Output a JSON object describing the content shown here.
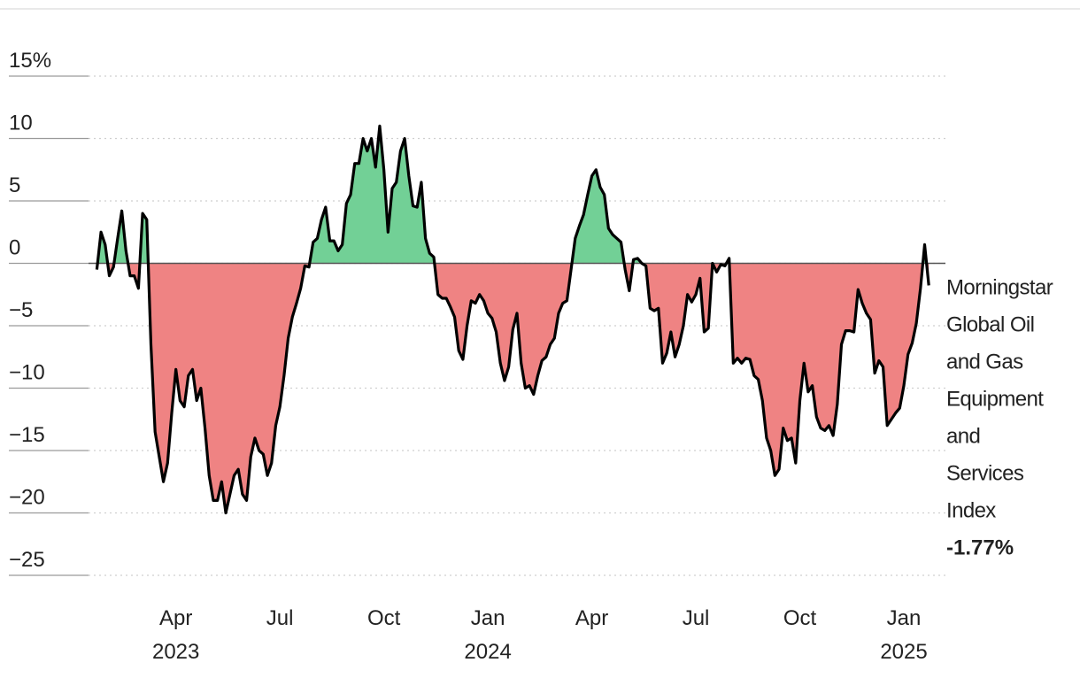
{
  "chart_data": {
    "type": "area",
    "xlim": [
      2023.04,
      2025.1
    ],
    "xticks": [
      {
        "value": 2023.25,
        "label": "Apr 2023"
      },
      {
        "value": 2023.5,
        "label": "Jul"
      },
      {
        "value": 2023.75,
        "label": "Oct"
      },
      {
        "value": 2024.0,
        "label": "Jan 2024"
      },
      {
        "value": 2024.25,
        "label": "Apr"
      },
      {
        "value": 2024.5,
        "label": "Jul"
      },
      {
        "value": 2024.75,
        "label": "Oct"
      },
      {
        "value": 2025.0,
        "label": "Jan 2025"
      }
    ],
    "ylim": [
      -25,
      15
    ],
    "yticks": [
      {
        "value": 15,
        "label": "15%"
      },
      10,
      5,
      0,
      {
        "value": -5,
        "label": "−5"
      },
      {
        "value": -10,
        "label": "−10"
      },
      {
        "value": -15,
        "label": "−15"
      },
      {
        "value": -20,
        "label": "−20"
      },
      {
        "value": -25,
        "label": "−25"
      }
    ],
    "grid": true,
    "positive_color": "#72d096",
    "negative_color": "#ef8383",
    "x": [
      2023.06,
      2023.07,
      2023.08,
      2023.09,
      2023.1,
      2023.11,
      2023.12,
      2023.13,
      2023.14,
      2023.15,
      2023.16,
      2023.17,
      2023.18,
      2023.19,
      2023.2,
      2023.21,
      2023.22,
      2023.23,
      2023.24,
      2023.25,
      2023.26,
      2023.27,
      2023.28,
      2023.29,
      2023.3,
      2023.31,
      2023.32,
      2023.33,
      2023.34,
      2023.35,
      2023.36,
      2023.37,
      2023.38,
      2023.39,
      2023.4,
      2023.41,
      2023.42,
      2023.43,
      2023.44,
      2023.45,
      2023.46,
      2023.47,
      2023.48,
      2023.49,
      2023.5,
      2023.51,
      2023.52,
      2023.53,
      2023.54,
      2023.55,
      2023.56,
      2023.57,
      2023.58,
      2023.59,
      2023.6,
      2023.61,
      2023.62,
      2023.63,
      2023.64,
      2023.65,
      2023.66,
      2023.67,
      2023.68,
      2023.69,
      2023.7,
      2023.71,
      2023.72,
      2023.73,
      2023.74,
      2023.75,
      2023.76,
      2023.77,
      2023.78,
      2023.79,
      2023.8,
      2023.81,
      2023.82,
      2023.83,
      2023.84,
      2023.85,
      2023.86,
      2023.87,
      2023.88,
      2023.89,
      2023.9,
      2023.91,
      2023.92,
      2023.93,
      2023.94,
      2023.95,
      2023.96,
      2023.97,
      2023.98,
      2023.99,
      2024.0,
      2024.01,
      2024.02,
      2024.03,
      2024.04,
      2024.05,
      2024.06,
      2024.07,
      2024.08,
      2024.09,
      2024.1,
      2024.11,
      2024.12,
      2024.13,
      2024.14,
      2024.15,
      2024.16,
      2024.17,
      2024.18,
      2024.19,
      2024.2,
      2024.21,
      2024.22,
      2024.23,
      2024.24,
      2024.25,
      2024.26,
      2024.27,
      2024.28,
      2024.29,
      2024.3,
      2024.31,
      2024.32,
      2024.33,
      2024.34,
      2024.35,
      2024.36,
      2024.37,
      2024.38,
      2024.39,
      2024.4,
      2024.41,
      2024.42,
      2024.43,
      2024.44,
      2024.45,
      2024.46,
      2024.47,
      2024.48,
      2024.49,
      2024.5,
      2024.51,
      2024.52,
      2024.53,
      2024.54,
      2024.55,
      2024.56,
      2024.57,
      2024.58,
      2024.59,
      2024.6,
      2024.61,
      2024.62,
      2024.63,
      2024.64,
      2024.65,
      2024.66,
      2024.67,
      2024.68,
      2024.69,
      2024.7,
      2024.71,
      2024.72,
      2024.73,
      2024.74,
      2024.75,
      2024.76,
      2024.77,
      2024.78,
      2024.79,
      2024.8,
      2024.81,
      2024.82,
      2024.83,
      2024.84,
      2024.85,
      2024.86,
      2024.87,
      2024.88,
      2024.89,
      2024.9,
      2024.91,
      2024.92,
      2024.93,
      2024.94,
      2024.95,
      2024.96,
      2024.97,
      2024.98,
      2024.99,
      2025.0,
      2025.01,
      2025.02,
      2025.03,
      2025.04,
      2025.05,
      2025.06
    ],
    "series": [
      {
        "name": "Morningstar Global Oil and Gas Equipment and Services Index",
        "color": "#000000",
        "end_label": "-1.77%",
        "values": [
          -0.5,
          2.5,
          1.5,
          -1,
          -0.3,
          2,
          4.2,
          1,
          -1,
          -1,
          -2,
          4,
          3.5,
          -6.5,
          -13.5,
          -15.5,
          -17.5,
          -16,
          -12,
          -8.5,
          -11,
          -11.5,
          -9,
          -8.5,
          -11,
          -10,
          -13.2,
          -17,
          -19,
          -19,
          -17.5,
          -20,
          -18.5,
          -17,
          -16.5,
          -18.5,
          -19,
          -15.5,
          -14,
          -15,
          -15.3,
          -17,
          -16,
          -13,
          -11.5,
          -9,
          -6,
          -4.3,
          -3.2,
          -2,
          -0.2,
          -0.3,
          1.7,
          2,
          3.5,
          4.5,
          1.8,
          1.8,
          1,
          1.5,
          4.8,
          5.5,
          8,
          8,
          10,
          9,
          10,
          7.7,
          11,
          7.5,
          2.5,
          6,
          6.5,
          9,
          10,
          7,
          4.6,
          4.5,
          6.5,
          2,
          0.8,
          0.5,
          -2.5,
          -2.8,
          -2.8,
          -3.5,
          -4.3,
          -7,
          -7.7,
          -5,
          -3,
          -3.2,
          -2.5,
          -3,
          -4,
          -4.4,
          -5.5,
          -8,
          -9.4,
          -8.3,
          -5.3,
          -4,
          -8,
          -10,
          -9.8,
          -10.5,
          -9,
          -7.8,
          -7.5,
          -6.5,
          -6,
          -4,
          -3.2,
          -3,
          -0.5,
          2,
          3,
          3.9,
          5.5,
          7,
          7.5,
          6.1,
          5.5,
          2.8,
          2.3,
          2,
          1.7,
          -0.5,
          -2.2,
          0.3,
          0.4,
          0,
          -0.2,
          -3.6,
          -3.8,
          -3.6,
          -8,
          -7.2,
          -5.5,
          -7.5,
          -6.5,
          -5,
          -2.5,
          -3.1,
          -2.5,
          -1.2,
          -5.5,
          -5.2,
          0,
          -0.7,
          -0.1,
          -0.2,
          0.4,
          -8,
          -7.6,
          -8,
          -7.6,
          -7.7,
          -9,
          -9.3,
          -11,
          -14,
          -15,
          -17,
          -16.5,
          -13.2,
          -14.2,
          -14,
          -16,
          -11,
          -8,
          -10.3,
          -9.8,
          -12.3,
          -13.2,
          -13.4,
          -13,
          -13.8,
          -11.3,
          -6.5,
          -5.4,
          -5.4,
          -5.5,
          -2.1,
          -3.2,
          -4,
          -4.5,
          -8.8,
          -7.8,
          -8.3,
          -13,
          -12.5,
          -12,
          -11.6,
          -9.8,
          -7.3,
          -6.4,
          -4.8,
          -2,
          1.5,
          -1.77
        ]
      }
    ]
  }
}
